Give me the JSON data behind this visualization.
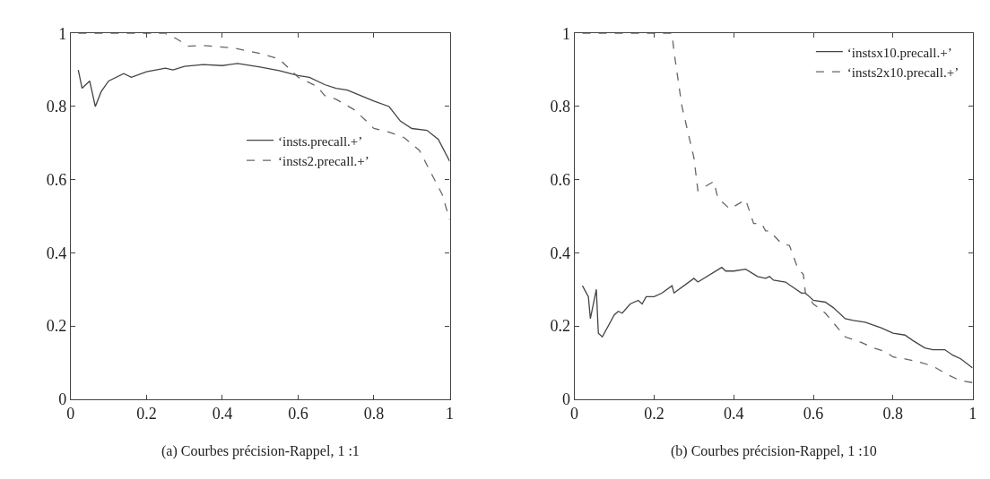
{
  "chart_data": [
    {
      "type": "line",
      "xlim": [
        0,
        1
      ],
      "ylim": [
        0,
        1
      ],
      "xticks": [
        0,
        0.2,
        0.4,
        0.6,
        0.8,
        1
      ],
      "yticks": [
        0,
        0.2,
        0.4,
        0.6,
        0.8,
        1
      ],
      "legend": "top right",
      "marker": "none",
      "annotations": [
        "(a) Courbes précision-Rappel, 1 :1"
      ],
      "series": [
        {
          "name": "‘insts.precall.+’",
          "color": "#444444",
          "line_style": "solid",
          "x": [
            0.02,
            0.03,
            0.05,
            0.065,
            0.08,
            0.1,
            0.14,
            0.16,
            0.2,
            0.25,
            0.27,
            0.3,
            0.35,
            0.4,
            0.44,
            0.5,
            0.55,
            0.6,
            0.63,
            0.67,
            0.7,
            0.73,
            0.8,
            0.84,
            0.87,
            0.9,
            0.94,
            0.97,
            1.0
          ],
          "values": [
            0.9,
            0.85,
            0.87,
            0.8,
            0.84,
            0.87,
            0.89,
            0.88,
            0.895,
            0.905,
            0.9,
            0.91,
            0.915,
            0.912,
            0.918,
            0.908,
            0.898,
            0.885,
            0.88,
            0.86,
            0.85,
            0.845,
            0.815,
            0.8,
            0.76,
            0.74,
            0.735,
            0.71,
            0.65
          ]
        },
        {
          "name": "‘insts2.precall.+’",
          "color": "#666666",
          "line_style": "dashed",
          "x": [
            0.02,
            0.25,
            0.28,
            0.31,
            0.35,
            0.43,
            0.5,
            0.55,
            0.57,
            0.6,
            0.65,
            0.67,
            0.7,
            0.75,
            0.78,
            0.8,
            0.84,
            0.88,
            0.92,
            0.95,
            0.98,
            1.0
          ],
          "values": [
            1.0,
            1.0,
            0.985,
            0.965,
            0.967,
            0.96,
            0.945,
            0.93,
            0.91,
            0.88,
            0.855,
            0.83,
            0.82,
            0.79,
            0.76,
            0.74,
            0.73,
            0.715,
            0.68,
            0.62,
            0.56,
            0.49
          ]
        }
      ]
    },
    {
      "type": "line",
      "xlim": [
        0,
        1
      ],
      "ylim": [
        0,
        1
      ],
      "xticks": [
        0,
        0.2,
        0.4,
        0.6,
        0.8,
        1
      ],
      "yticks": [
        0,
        0.2,
        0.4,
        0.6,
        0.8,
        1
      ],
      "legend": "top right",
      "marker": "none",
      "annotations": [
        "(b) Courbes précision-Rappel, 1 :10"
      ],
      "series": [
        {
          "name": "‘instsx10.precall.+’",
          "color": "#444444",
          "line_style": "solid",
          "x": [
            0.02,
            0.035,
            0.04,
            0.055,
            0.06,
            0.07,
            0.1,
            0.11,
            0.12,
            0.14,
            0.16,
            0.17,
            0.18,
            0.2,
            0.22,
            0.245,
            0.25,
            0.3,
            0.31,
            0.37,
            0.38,
            0.4,
            0.43,
            0.46,
            0.48,
            0.49,
            0.5,
            0.53,
            0.57,
            0.58,
            0.6,
            0.63,
            0.65,
            0.68,
            0.7,
            0.73,
            0.77,
            0.8,
            0.83,
            0.85,
            0.88,
            0.9,
            0.93,
            0.95,
            0.97,
            1.0
          ],
          "values": [
            0.31,
            0.28,
            0.22,
            0.3,
            0.18,
            0.17,
            0.23,
            0.24,
            0.235,
            0.26,
            0.27,
            0.26,
            0.28,
            0.28,
            0.29,
            0.31,
            0.29,
            0.33,
            0.32,
            0.36,
            0.35,
            0.35,
            0.355,
            0.335,
            0.33,
            0.335,
            0.325,
            0.32,
            0.29,
            0.29,
            0.27,
            0.265,
            0.25,
            0.22,
            0.215,
            0.21,
            0.195,
            0.18,
            0.175,
            0.16,
            0.14,
            0.135,
            0.135,
            0.12,
            0.11,
            0.085
          ]
        },
        {
          "name": "‘insts2x10.precall.+’",
          "color": "#666666",
          "line_style": "dashed",
          "x": [
            0.02,
            0.245,
            0.25,
            0.27,
            0.3,
            0.31,
            0.35,
            0.36,
            0.39,
            0.43,
            0.45,
            0.47,
            0.48,
            0.49,
            0.52,
            0.54,
            0.56,
            0.575,
            0.58,
            0.6,
            0.63,
            0.68,
            0.72,
            0.75,
            0.78,
            0.8,
            0.83,
            0.87,
            0.9,
            0.94,
            0.97,
            1.0
          ],
          "values": [
            1.0,
            1.0,
            0.95,
            0.8,
            0.66,
            0.57,
            0.595,
            0.55,
            0.52,
            0.545,
            0.48,
            0.48,
            0.46,
            0.46,
            0.425,
            0.42,
            0.36,
            0.34,
            0.29,
            0.26,
            0.235,
            0.17,
            0.155,
            0.14,
            0.13,
            0.115,
            0.11,
            0.1,
            0.09,
            0.065,
            0.05,
            0.045
          ]
        }
      ]
    }
  ]
}
